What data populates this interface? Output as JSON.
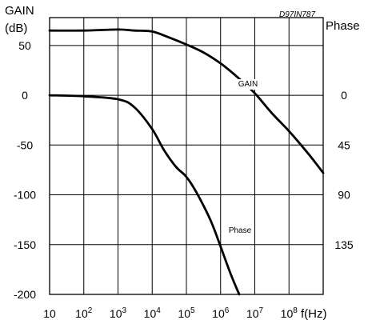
{
  "chart_data": {
    "type": "line",
    "code": "D97IN787",
    "left_axis": {
      "title_line1": "GAIN",
      "title_line2": "(dB)",
      "ylim": [
        -200,
        78
      ],
      "ticks": [
        {
          "value": 50,
          "label": "50"
        },
        {
          "value": 0,
          "label": "0"
        },
        {
          "value": -50,
          "label": "-50"
        },
        {
          "value": -100,
          "label": "-100"
        },
        {
          "value": -150,
          "label": "-150"
        },
        {
          "value": -200,
          "label": "-200"
        }
      ]
    },
    "right_axis": {
      "title": "Phase",
      "ticks": [
        {
          "value": 0,
          "label": "0"
        },
        {
          "value": 45,
          "label": "45"
        },
        {
          "value": 90,
          "label": "90"
        },
        {
          "value": 135,
          "label": "135"
        }
      ]
    },
    "x_axis": {
      "scale": "log",
      "unit_label": "f(Hz)",
      "xlim": [
        10,
        1000000000
      ],
      "ticks": [
        {
          "value": 10,
          "base": "10",
          "exp": ""
        },
        {
          "value": 100,
          "base": "10",
          "exp": "2"
        },
        {
          "value": 1000,
          "base": "10",
          "exp": "3"
        },
        {
          "value": 10000,
          "base": "10",
          "exp": "4"
        },
        {
          "value": 100000,
          "base": "10",
          "exp": "5"
        },
        {
          "value": 1000000,
          "base": "10",
          "exp": "6"
        },
        {
          "value": 10000000,
          "base": "10",
          "exp": "7"
        },
        {
          "value": 100000000,
          "base": "10",
          "exp": "8"
        }
      ]
    },
    "grid": true,
    "series": [
      {
        "name": "GAIN",
        "axis": "left",
        "points": [
          [
            10,
            65
          ],
          [
            100,
            65
          ],
          [
            1000,
            66
          ],
          [
            3000,
            65
          ],
          [
            10000,
            64
          ],
          [
            31600,
            58
          ],
          [
            100000,
            51
          ],
          [
            316000,
            43
          ],
          [
            1000000,
            32
          ],
          [
            3160000,
            18
          ],
          [
            10000000,
            2
          ],
          [
            31600000,
            -18
          ],
          [
            100000000,
            -36
          ],
          [
            316000000,
            -56
          ],
          [
            600000000,
            -68
          ],
          [
            1000000000,
            -78
          ]
        ]
      },
      {
        "name": "Phase",
        "axis": "left",
        "points": [
          [
            10,
            0
          ],
          [
            100,
            -1
          ],
          [
            1000,
            -4
          ],
          [
            3000,
            -12
          ],
          [
            10000,
            -34
          ],
          [
            22000,
            -55
          ],
          [
            50000,
            -72
          ],
          [
            100000,
            -82
          ],
          [
            200000,
            -98
          ],
          [
            500000,
            -125
          ],
          [
            1000000,
            -152
          ],
          [
            2000000,
            -180
          ],
          [
            3500000,
            -200
          ]
        ]
      }
    ]
  }
}
